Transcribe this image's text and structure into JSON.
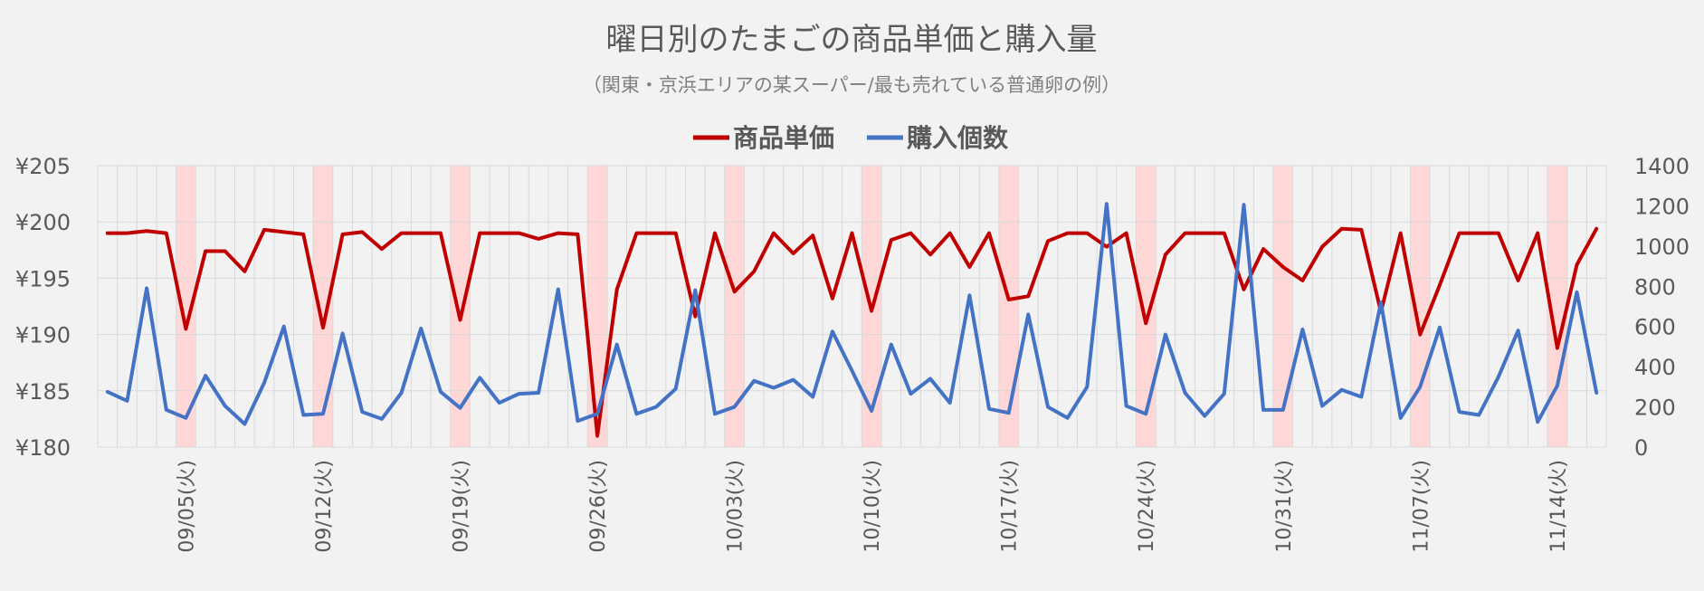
{
  "chart_data": {
    "type": "line",
    "title": "曜日別のたまごの商品単価と購入量",
    "subtitle": "（関東・京浜エリアの某スーパー/最も売れている普通卵の例）",
    "legend_position": "top",
    "y_left": {
      "ylim": [
        180,
        205
      ],
      "ticks": [
        "¥180",
        "¥185",
        "¥190",
        "¥195",
        "¥200",
        "¥205"
      ],
      "tick_values": [
        180,
        185,
        190,
        195,
        200,
        205
      ]
    },
    "y_right": {
      "ylim": [
        0,
        1400
      ],
      "ticks": [
        "0",
        "200",
        "400",
        "600",
        "800",
        "1000",
        "1200",
        "1400"
      ],
      "tick_values": [
        0,
        200,
        400,
        600,
        800,
        1000,
        1200,
        1400
      ]
    },
    "x_tick_labels": [
      "09/05(火)",
      "09/12(火)",
      "09/19(火)",
      "09/26(火)",
      "10/03(火)",
      "10/10(火)",
      "10/17(火)",
      "10/24(火)",
      "10/31(火)",
      "11/07(火)",
      "11/14(火)"
    ],
    "x_tick_day_index": [
      4,
      11,
      18,
      25,
      32,
      39,
      46,
      53,
      60,
      67,
      74
    ],
    "highlight_day_index": [
      4,
      11,
      18,
      25,
      32,
      39,
      46,
      53,
      60,
      67,
      74
    ],
    "highlight_color": "#ffd7d7",
    "grid": true,
    "series": [
      {
        "name": "商品単価",
        "axis": "left",
        "color": "#c00000",
        "values": [
          199,
          199,
          199.2,
          199,
          190.5,
          197.4,
          197.4,
          195.6,
          199.3,
          199.1,
          198.9,
          190.6,
          198.9,
          199.1,
          197.6,
          199,
          199,
          199,
          191.3,
          199,
          199,
          199,
          198.5,
          199,
          198.9,
          181,
          194,
          199,
          199,
          199,
          191.6,
          199,
          193.8,
          195.6,
          199,
          197.2,
          198.8,
          193.2,
          199,
          192.1,
          198.4,
          199,
          197.1,
          199,
          196,
          199,
          193.1,
          193.4,
          198.3,
          199,
          199,
          197.8,
          199,
          191,
          197.1,
          199,
          199,
          199,
          194,
          197.6,
          196,
          194.8,
          197.8,
          199.4,
          199.3,
          192,
          199,
          190,
          194.4,
          199,
          199,
          199,
          194.8,
          199,
          188.8,
          196.2,
          199.4
        ]
      },
      {
        "name": "購入個数",
        "axis": "right",
        "color": "#4472c4",
        "values": [
          275,
          230,
          790,
          185,
          145,
          355,
          205,
          115,
          320,
          600,
          160,
          165,
          565,
          175,
          140,
          270,
          590,
          275,
          195,
          345,
          220,
          265,
          270,
          785,
          130,
          165,
          510,
          165,
          200,
          290,
          780,
          165,
          200,
          330,
          295,
          335,
          250,
          575,
          380,
          180,
          510,
          265,
          340,
          220,
          755,
          190,
          170,
          660,
          200,
          145,
          300,
          1210,
          205,
          165,
          560,
          270,
          155,
          265,
          1205,
          185,
          185,
          585,
          205,
          285,
          250,
          720,
          145,
          300,
          595,
          175,
          160,
          350,
          580,
          125,
          305,
          770,
          270
        ]
      }
    ]
  }
}
